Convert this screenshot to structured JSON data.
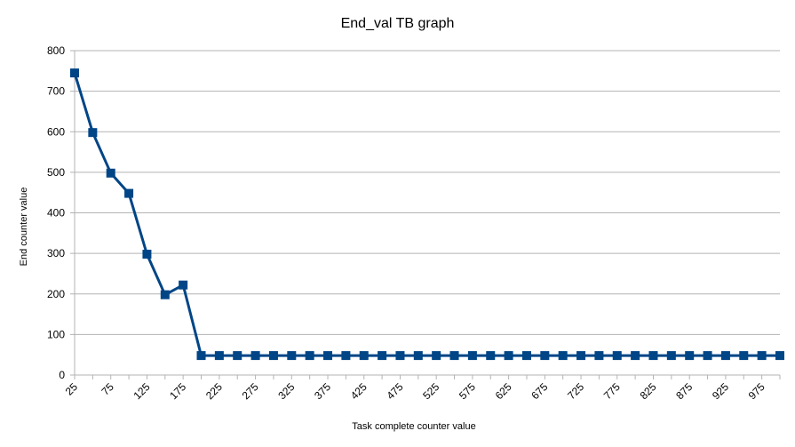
{
  "chart_data": {
    "type": "line",
    "title": "End_val TB graph",
    "xlabel": "Task complete counter value",
    "ylabel": "End counter value",
    "x": [
      25,
      50,
      75,
      100,
      125,
      150,
      175,
      200,
      225,
      250,
      275,
      300,
      325,
      350,
      375,
      400,
      425,
      450,
      475,
      500,
      525,
      550,
      575,
      600,
      625,
      650,
      675,
      700,
      725,
      750,
      775,
      800,
      825,
      850,
      875,
      900,
      925,
      950,
      975,
      1000
    ],
    "series": [
      {
        "values": [
          745,
          598,
          498,
          448,
          298,
          198,
          222,
          48,
          48,
          48,
          48,
          48,
          48,
          48,
          48,
          48,
          48,
          48,
          48,
          48,
          48,
          48,
          48,
          48,
          48,
          48,
          48,
          48,
          48,
          48,
          48,
          48,
          48,
          48,
          48,
          48,
          48,
          48,
          48,
          48
        ],
        "color": "#004586",
        "marker": "square"
      }
    ],
    "x_tick_labels": [
      "25",
      "75",
      "125",
      "175",
      "225",
      "275",
      "325",
      "375",
      "425",
      "475",
      "525",
      "575",
      "625",
      "675",
      "725",
      "775",
      "825",
      "875",
      "925",
      "975"
    ],
    "y_ticks": [
      0,
      100,
      200,
      300,
      400,
      500,
      600,
      700,
      800
    ],
    "ylim": [
      0,
      800
    ],
    "grid": "horizontal",
    "gridColor": "#b3b3b3",
    "legend": "none"
  }
}
